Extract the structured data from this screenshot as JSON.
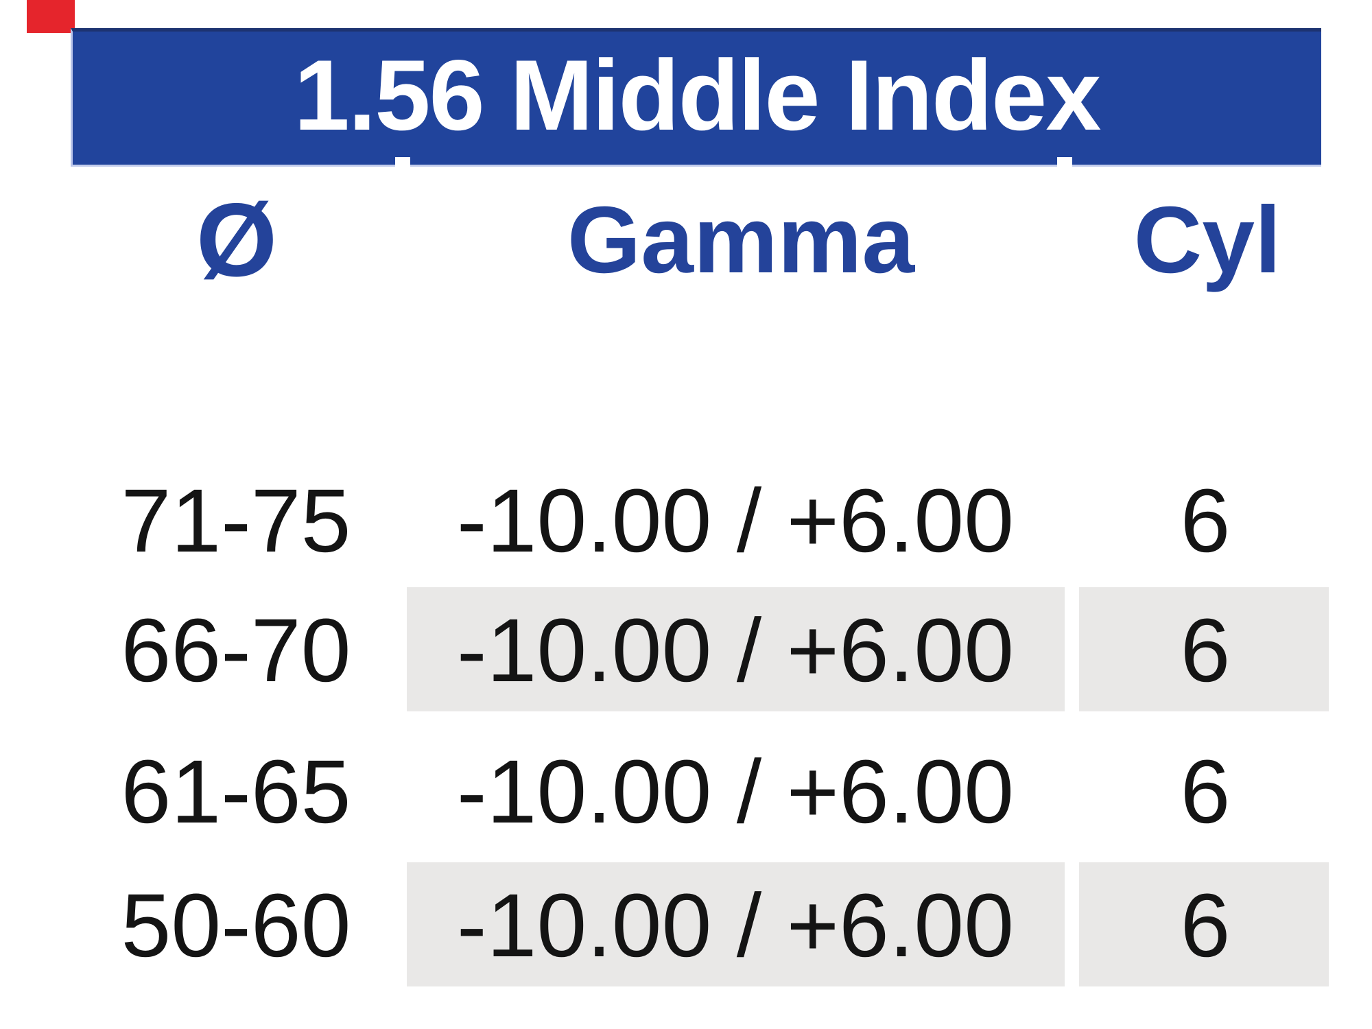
{
  "title": "1.56 Middle Index",
  "columns": [
    {
      "label": "Ø"
    },
    {
      "label": "Gamma"
    },
    {
      "label": "Cyl"
    }
  ],
  "table": {
    "rows": [
      {
        "diameter": "71-75",
        "gamma": "-10.00 / +6.00",
        "cyl": "6",
        "shaded": false
      },
      {
        "diameter": "66-70",
        "gamma": "-10.00 / +6.00",
        "cyl": "6",
        "shaded": true
      },
      {
        "diameter": "61-65",
        "gamma": "-10.00 / +6.00",
        "cyl": "6",
        "shaded": false
      },
      {
        "diameter": "50-60",
        "gamma": "-10.00 / +6.00",
        "cyl": "6",
        "shaded": true
      }
    ]
  },
  "colors": {
    "header_bg": "#21449c",
    "header_text": "#ffffff",
    "column_header_text": "#24439a",
    "row_shade": "#e9e8e7",
    "data_text": "#141414",
    "artifact_red": "#e5252c"
  }
}
